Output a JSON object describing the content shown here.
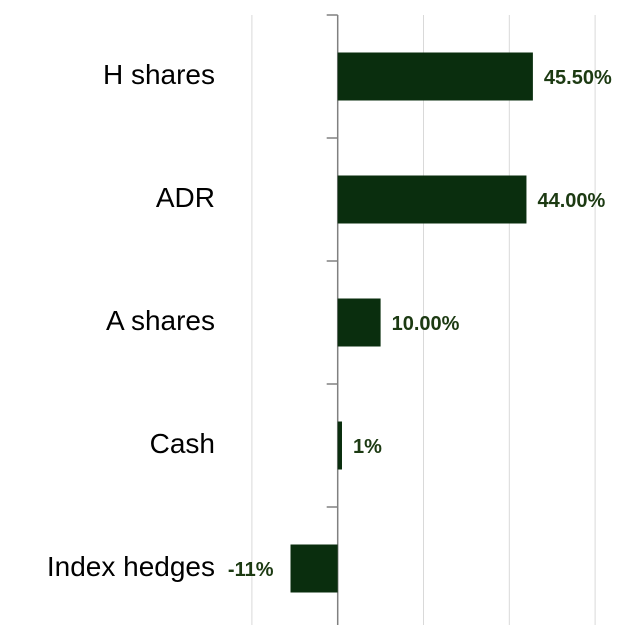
{
  "chart_data": {
    "type": "hbar",
    "categories": [
      "H shares",
      "ADR",
      "A shares",
      "Cash",
      "Index hedges"
    ],
    "values": [
      45.5,
      44,
      10,
      1,
      -11
    ],
    "value_labels": [
      "45.50%",
      "44.00%",
      "10.00%",
      "1%",
      "-11%"
    ],
    "color": "#0a2e0e",
    "xlim": [
      -30,
      70
    ],
    "xticks": [
      -20,
      0,
      20,
      40,
      60
    ],
    "grid": true
  }
}
